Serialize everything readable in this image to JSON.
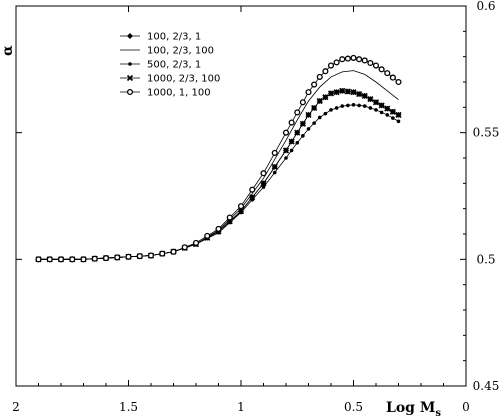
{
  "chart_data": {
    "type": "line",
    "xlabel": "Log M",
    "xlabel_sub": "s",
    "ylabel": "α",
    "xlim": [
      2,
      0
    ],
    "ylim": [
      0.45,
      0.6
    ],
    "x_ticks": [
      "2",
      "1.5",
      "1",
      "0.5",
      "0"
    ],
    "x_tick_values": [
      2,
      1.5,
      1,
      0.5,
      0
    ],
    "y_ticks": [
      "0.45",
      "0.5",
      "0.55",
      "0.6"
    ],
    "y_tick_values": [
      0.45,
      0.5,
      0.55,
      0.6
    ],
    "grid": false,
    "legend_position": "top-left",
    "x": [
      1.9,
      1.8,
      1.7,
      1.6,
      1.5,
      1.4,
      1.3,
      1.2,
      1.1,
      1.0,
      0.9,
      0.8,
      0.75,
      0.7,
      0.65,
      0.6,
      0.55,
      0.5,
      0.45,
      0.4,
      0.35,
      0.3
    ],
    "series": [
      {
        "name": "100, 2/3, 1",
        "marker": "diamond",
        "values": [
          0.5,
          0.5,
          0.5,
          0.5005,
          0.501,
          0.5015,
          0.503,
          0.506,
          0.511,
          0.519,
          0.53,
          0.543,
          0.55,
          0.557,
          0.5625,
          0.5655,
          0.5665,
          0.566,
          0.5645,
          0.562,
          0.5595,
          0.557
        ]
      },
      {
        "name": "100, 2/3, 100",
        "marker": "none",
        "values": [
          0.5,
          0.5,
          0.5,
          0.5005,
          0.501,
          0.5015,
          0.503,
          0.506,
          0.5115,
          0.52,
          0.532,
          0.547,
          0.555,
          0.5625,
          0.568,
          0.572,
          0.574,
          0.5745,
          0.573,
          0.57,
          0.5665,
          0.563
        ]
      },
      {
        "name": "500, 2/3, 1",
        "marker": "dot",
        "values": [
          0.5,
          0.5,
          0.5,
          0.5005,
          0.501,
          0.5015,
          0.503,
          0.506,
          0.5105,
          0.5185,
          0.5285,
          0.54,
          0.546,
          0.5515,
          0.556,
          0.559,
          0.5605,
          0.561,
          0.5605,
          0.559,
          0.557,
          0.5545
        ]
      },
      {
        "name": "1000, 2/3, 100",
        "marker": "x",
        "values": [
          0.5,
          0.5,
          0.5,
          0.5005,
          0.501,
          0.5015,
          0.503,
          0.506,
          0.511,
          0.519,
          0.53,
          0.543,
          0.55,
          0.557,
          0.5625,
          0.5655,
          0.5665,
          0.566,
          0.5645,
          0.562,
          0.5595,
          0.557
        ]
      },
      {
        "name": "1000, 1, 100",
        "marker": "circle",
        "values": [
          0.5,
          0.5,
          0.5,
          0.5005,
          0.501,
          0.5015,
          0.503,
          0.5065,
          0.512,
          0.521,
          0.534,
          0.55,
          0.558,
          0.566,
          0.572,
          0.5765,
          0.579,
          0.5795,
          0.5785,
          0.5765,
          0.5735,
          0.57
        ]
      }
    ]
  }
}
